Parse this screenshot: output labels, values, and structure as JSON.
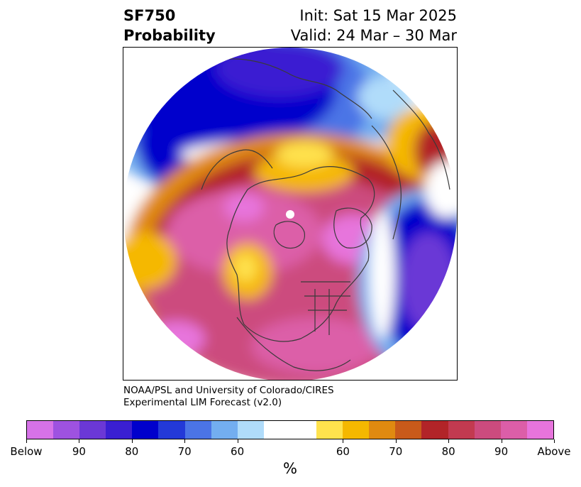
{
  "title": {
    "left_line1": "SF750",
    "left_line2": "Probability",
    "right_line1": "Init: Sat 15 Mar 2025",
    "right_line2": "Valid: 24 Mar – 30 Mar"
  },
  "credit": {
    "line1": "NOAA/PSL and University of Colorado/CIRES",
    "line2": "Experimental LIM Forecast (v2.0)"
  },
  "colorbar": {
    "colors": [
      "#d672e8",
      "#9e52e0",
      "#6b38d6",
      "#3a1fd2",
      "#0000cc",
      "#2339d8",
      "#4b74e6",
      "#73aef0",
      "#b0dcfa",
      "#ffffff",
      "#ffffff",
      "#ffe24d",
      "#f5b800",
      "#e08a10",
      "#c95a1a",
      "#b22428",
      "#c23a50",
      "#cc4b7e",
      "#dc5ea8",
      "#e774dc"
    ],
    "tick_labels": [
      "Below",
      "90",
      "80",
      "70",
      "60",
      "60",
      "70",
      "80",
      "90",
      "Above"
    ],
    "unit": "%"
  }
}
